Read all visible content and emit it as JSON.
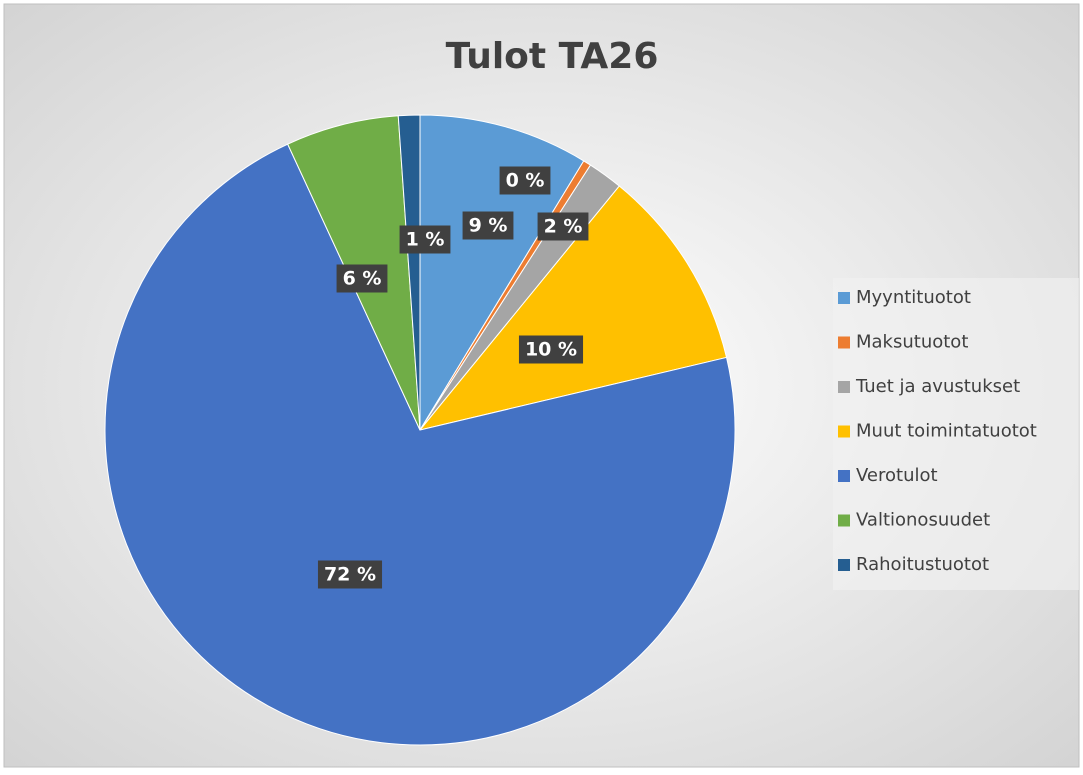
{
  "chart_data": {
    "type": "pie",
    "title": "Tulot TA26",
    "categories": [
      "Myyntituotot",
      "Maksutuotot",
      "Tuet ja avustukset",
      "Muut toimintatuotot",
      "Verotulot",
      "Valtionosuudet",
      "Rahoitustuotot"
    ],
    "values": [
      8.7,
      0.4,
      1.8,
      10.4,
      71.8,
      5.8,
      1.1
    ],
    "value_labels": [
      "9 %",
      "0 %",
      "2 %",
      "10 %",
      "72 %",
      "6 %",
      "1 %"
    ],
    "colors": [
      "#5b9bd5",
      "#ed7d31",
      "#a5a5a5",
      "#ffc000",
      "#4472c4",
      "#70ad47",
      "#255e91"
    ],
    "legend": "right"
  }
}
